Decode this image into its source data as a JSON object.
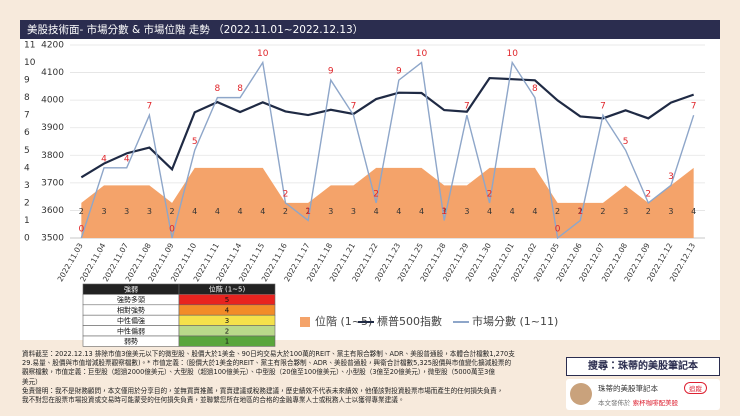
{
  "chart_data": {
    "type": "line",
    "title": "美股技術面- 市場分數 & 市場位階 走勢 （2022.11.01~2022.12.13）",
    "categories": [
      "2022.11.03",
      "2022.11.04",
      "2022.11.07",
      "2022.11.08",
      "2022.11.09",
      "2022.11.10",
      "2022.11.11",
      "2022.11.14",
      "2022.11.15",
      "2022.11.16",
      "2022.11.17",
      "2022.11.18",
      "2022.11.21",
      "2022.11.22",
      "2022.11.23",
      "2022.11.25",
      "2022.11.28",
      "2022.11.29",
      "2022.11.30",
      "2022.12.01",
      "2022.12.02",
      "2022.12.05",
      "2022.12.06",
      "2022.12.07",
      "2022.12.08",
      "2022.12.09",
      "2022.12.12",
      "2022.12.13"
    ],
    "series": [
      {
        "name": "位階 (1~5)",
        "type": "area",
        "color": "#f4a36a",
        "values": [
          2,
          3,
          3,
          3,
          2,
          4,
          4,
          4,
          4,
          2,
          2,
          3,
          3,
          4,
          4,
          4,
          3,
          3,
          4,
          4,
          4,
          2,
          2,
          2,
          3,
          2,
          3,
          4
        ]
      },
      {
        "name": "標普500指數",
        "type": "line",
        "axis": "y2",
        "color": "#1f2a44",
        "values": [
          3720,
          3770,
          3807,
          3828,
          3749,
          3956,
          3993,
          3957,
          3992,
          3959,
          3946,
          3965,
          3950,
          4004,
          4027,
          4026,
          3964,
          3958,
          4080,
          4076,
          4072,
          3999,
          3941,
          3934,
          3963,
          3934,
          3991,
          4020
        ]
      },
      {
        "name": "市場分數 (1~11)",
        "type": "line",
        "color": "#8ea6c9",
        "label_color": "#e0262b",
        "values": [
          0,
          4,
          4,
          7,
          0,
          5,
          8,
          8,
          10,
          2,
          1,
          9,
          7,
          2,
          9,
          10,
          1,
          7,
          2,
          10,
          8,
          0,
          1,
          7,
          5,
          2,
          3,
          7
        ]
      }
    ],
    "ylim": [
      0,
      11
    ],
    "yticks": [
      0,
      1,
      2,
      3,
      4,
      5,
      6,
      7,
      8,
      9,
      10,
      11
    ],
    "y2lim": [
      3500,
      4200
    ],
    "y2ticks": [
      3500,
      3600,
      3700,
      3800,
      3900,
      4000,
      4100,
      4200
    ],
    "grid": true,
    "legend": "bottom"
  },
  "table": {
    "header": [
      "強弱",
      "位階 (1~5)"
    ],
    "rows": [
      [
        "強勢多頭",
        "5"
      ],
      [
        "相對強勢",
        "4"
      ],
      [
        "中性偏強",
        "3"
      ],
      [
        "中性偏弱",
        "2"
      ],
      [
        "弱勢",
        "1"
      ]
    ],
    "colors": [
      "#e8231f",
      "#f28c28",
      "#f5e14a",
      "#b9d98a",
      "#5aa63c"
    ]
  },
  "footer": {
    "note": [
      "資料截至：2022.12.13 排除市值3億美元以下的微型股、股價大於1美金、90日均交易大於100萬的REIT、黨主有限合夥制、ADR、美股普通股，本體合計檔數1,270支",
      "29.易量、股價與市值增減股票觀察檔數)。* 市值定義：（股價大於1美金的REIT、黨主有限合夥制、ADR、美股普通股，興衛合計檔數5,325股價與市值變化擴減股票的",
      "觀察檔數，市值定義：巨型股（超過2000億美元）、大型股（超過100億美元）、中型股（20億至100億美元）、小型股（3億至20億美元），微型股（5000萬至3億",
      "美元）",
      "免責聲明：我不是財務顧問，本文僅用於分享目的，並無買賣推薦，買賣建議或稅務建議，歷史績效不代表未來績效，他僅該對投資股票市場而產生的任何損失負責，",
      "我不對您在股票市場投資或交易時可能蒙受的任何損失負責，並聯繫您所在地區的合格的金融專業人士或稅務人士以獲得專業建議。"
    ]
  },
  "sidebar": {
    "search": "搜尋：珠蒂的美股筆記本",
    "name": "珠蒂的美股筆記本",
    "follow": "追蹤",
    "published": "本文發佈於",
    "site": "索杯咖啡配美股"
  }
}
